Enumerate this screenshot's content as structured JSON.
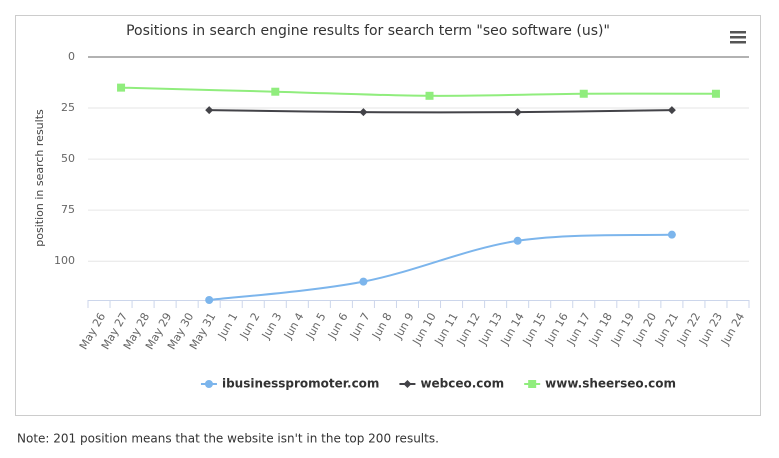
{
  "chart_data": {
    "type": "line",
    "title": "Positions in search engine results for search term \"seo software (us)\"",
    "y_label": "position in search results",
    "categories": [
      "May 26",
      "May 27",
      "May 28",
      "May 29",
      "May 30",
      "May 31",
      "Jun 1",
      "Jun 2",
      "Jun 3",
      "Jun 4",
      "Jun 5",
      "Jun 6",
      "Jun 7",
      "Jun 8",
      "Jun 9",
      "Jun 10",
      "Jun 11",
      "Jun 12",
      "Jun 13",
      "Jun 14",
      "Jun 15",
      "Jun 16",
      "Jun 17",
      "Jun 18",
      "Jun 19",
      "Jun 20",
      "Jun 21",
      "Jun 22",
      "Jun 23",
      "Jun 24"
    ],
    "series": [
      {
        "name": "ibusinesspromoter.com",
        "color": "#7cb5ec",
        "marker": "circle",
        "x": [
          "May 31",
          "Jun 7",
          "Jun 14",
          "Jun 21"
        ],
        "values": [
          119,
          110,
          90,
          87
        ]
      },
      {
        "name": "webceo.com",
        "color": "#434348",
        "marker": "diamond",
        "x": [
          "May 31",
          "Jun 7",
          "Jun 14",
          "Jun 21"
        ],
        "values": [
          26,
          27,
          27,
          26
        ]
      },
      {
        "name": "www.sheerseo.com",
        "color": "#90ed7d",
        "marker": "square",
        "x": [
          "May 27",
          "Jun 3",
          "Jun 10",
          "Jun 17",
          "Jun 23"
        ],
        "values": [
          15,
          17,
          19,
          18,
          18
        ]
      }
    ],
    "ylim": [
      0,
      119
    ],
    "yticks": [
      0,
      25,
      50,
      75,
      100
    ],
    "y_reversed": true,
    "grid": true
  },
  "note": "Note: 201 position means that the website isn't in the top 200 results."
}
